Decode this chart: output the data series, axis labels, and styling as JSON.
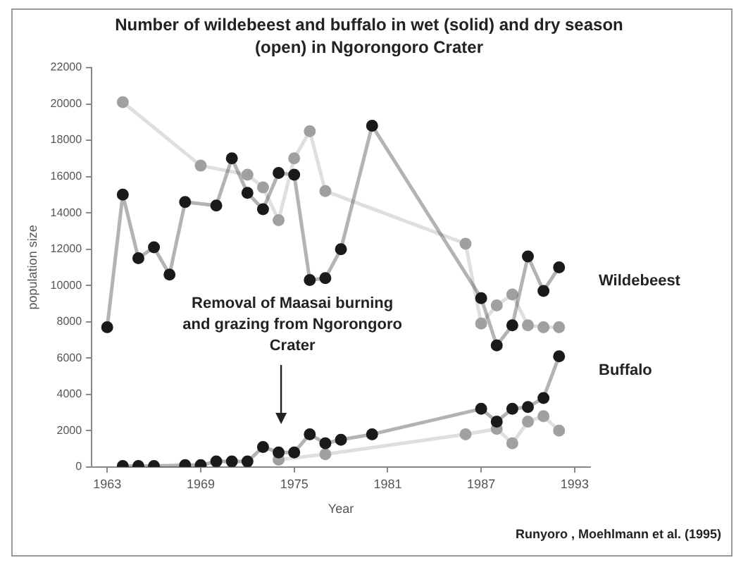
{
  "chart_data": {
    "type": "line",
    "title": "Number of wildebeest and buffalo in wet (solid) and dry season (open) in Ngorongoro Crater",
    "xlabel": "Year",
    "ylabel": "population size",
    "xlim": [
      1962,
      1994
    ],
    "xticks": [
      1963,
      1969,
      1975,
      1981,
      1987,
      1993
    ],
    "ylim": [
      0,
      22000
    ],
    "yticks": [
      0,
      2000,
      4000,
      6000,
      8000,
      10000,
      12000,
      14000,
      16000,
      18000,
      20000,
      22000
    ],
    "grid": false,
    "legend": false,
    "marker": "circle",
    "series": [
      {
        "name": "Wildebeest",
        "color": "#1a1a1a",
        "x": [
          1963,
          1964,
          1965,
          1966,
          1967,
          1968,
          1970,
          1971,
          1972,
          1973,
          1974,
          1975,
          1976,
          1977,
          1978,
          1980,
          1987,
          1988,
          1989,
          1990,
          1991,
          1992
        ],
        "values": [
          7700,
          15000,
          11500,
          12100,
          10600,
          14600,
          14400,
          17000,
          15100,
          14200,
          16200,
          16100,
          10300,
          10400,
          12000,
          18800,
          9300,
          6700,
          7800,
          11600,
          9700,
          11000
        ]
      },
      {
        "color": "#a0a0a0",
        "x": [
          1964,
          1969,
          1972,
          1973,
          1974,
          1975,
          1976,
          1977,
          1986,
          1987,
          1988,
          1989,
          1990,
          1991,
          1992
        ],
        "values": [
          20100,
          16600,
          16100,
          15400,
          13600,
          17000,
          18500,
          15200,
          12300,
          7900,
          8900,
          9500,
          7800,
          7700,
          7700
        ]
      },
      {
        "name": "Buffalo",
        "color": "#1a1a1a",
        "x": [
          1964,
          1965,
          1966,
          1968,
          1969,
          1970,
          1971,
          1972,
          1973,
          1974,
          1975,
          1976,
          1977,
          1978,
          1980,
          1987,
          1988,
          1989,
          1990,
          1991,
          1992
        ],
        "values": [
          50,
          50,
          50,
          100,
          100,
          300,
          300,
          300,
          1100,
          800,
          800,
          1800,
          1300,
          1500,
          1800,
          3200,
          2500,
          3200,
          3300,
          3800,
          6100
        ]
      },
      {
        "color": "#a0a0a0",
        "x": [
          1974,
          1977,
          1986,
          1988,
          1989,
          1990,
          1991,
          1992
        ],
        "values": [
          400,
          700,
          1800,
          2100,
          1300,
          2500,
          2800,
          2000
        ]
      }
    ],
    "annotations": [
      "Removal of Maasai burning and grazing from Ngorongoro Crater",
      "Runyoro , Moehlmann et al. (1995)"
    ]
  }
}
